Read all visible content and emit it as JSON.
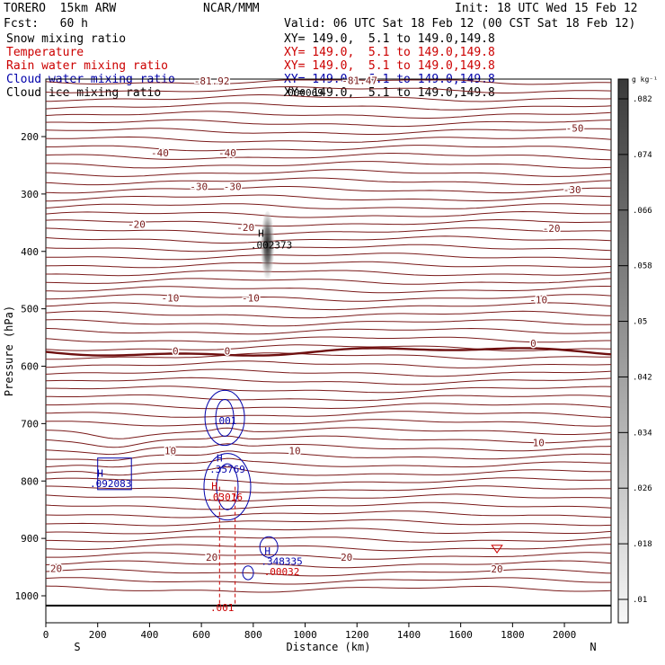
{
  "header": {
    "model": "TORERO  15km ARW",
    "center": "NCAR/MMM",
    "init": "Init: 18 UTC Wed 15 Feb 12",
    "fcst": "Fcst:   60 h",
    "valid": "Valid: 06 UTC Sat 18 Feb 12 (00 CST Sat 18 Feb 12)"
  },
  "legend": [
    {
      "label": "Snow mixing ratio",
      "xy": "XY= 149.0,  5.1 to 149.0,149.8",
      "color": "#000000",
      "xy_color": "#000000"
    },
    {
      "label": "Temperature",
      "xy": "XY= 149.0,  5.1 to 149.0,149.8",
      "color": "#cc0000",
      "xy_color": "#cc0000"
    },
    {
      "label": "Rain water mixing ratio",
      "xy": "XY= 149.0,  5.1 to 149.0,149.8",
      "color": "#cc0000",
      "xy_color": "#cc0000"
    },
    {
      "label": "Cloud water mixing ratio",
      "xy": "XY= 149.0,  5.1 to 149.0,149.8",
      "color": "#0000aa",
      "xy_color": "#0000aa"
    },
    {
      "label": "Cloud ice mixing ratio",
      "xy": "XY= 149.0,  5.1 to 149.0,149.8",
      "color": "#000000",
      "xy_color": "#000000"
    }
  ],
  "colors": {
    "temperature": "#7a1a1a",
    "freezing": "#6e0f0f",
    "cloud_water": "#0000aa",
    "rain": "#cc0000",
    "snow_dark": "#222222"
  },
  "chart_data": {
    "type": "cross-section",
    "xlabel": "Distance (km)",
    "ylabel": "Pressure (hPa)",
    "x_ticks": [
      0,
      200,
      400,
      600,
      800,
      1000,
      1200,
      1400,
      1600,
      1800,
      2000
    ],
    "y_ticks": [
      200,
      300,
      400,
      500,
      600,
      700,
      800,
      900,
      1000
    ],
    "xlim": [
      0,
      2180
    ],
    "ylim": [
      1050,
      100
    ],
    "end_labels": {
      "left": "S",
      "right": "N"
    },
    "colorbar": {
      "unit": "g kg⁻¹",
      "ticks": [
        ".01",
        ".018",
        ".026",
        ".034",
        ".042",
        ".05",
        ".058",
        ".066",
        ".074",
        ".082"
      ]
    },
    "temperature_labels": [
      {
        "text": "-81.92",
        "x": 640,
        "p": 103
      },
      {
        "text": "-81.47",
        "x": 1210,
        "p": 102
      },
      {
        "text": "-50",
        "x": 2040,
        "p": 185
      },
      {
        "text": "-40",
        "x": 440,
        "p": 228
      },
      {
        "text": "-40",
        "x": 700,
        "p": 228
      },
      {
        "text": "-30",
        "x": 590,
        "p": 287
      },
      {
        "text": "-30",
        "x": 720,
        "p": 287
      },
      {
        "text": "-30",
        "x": 2030,
        "p": 292
      },
      {
        "text": "-20",
        "x": 350,
        "p": 353
      },
      {
        "text": "-20",
        "x": 770,
        "p": 358
      },
      {
        "text": "-20",
        "x": 1950,
        "p": 360
      },
      {
        "text": "-10",
        "x": 480,
        "p": 481
      },
      {
        "text": "-10",
        "x": 790,
        "p": 481
      },
      {
        "text": "-10",
        "x": 1900,
        "p": 484
      },
      {
        "text": "0",
        "x": 500,
        "p": 573
      },
      {
        "text": "0",
        "x": 700,
        "p": 573
      },
      {
        "text": "0",
        "x": 1880,
        "p": 560
      },
      {
        "text": "10",
        "x": 480,
        "p": 747
      },
      {
        "text": "10",
        "x": 960,
        "p": 747
      },
      {
        "text": "10",
        "x": 1900,
        "p": 733
      },
      {
        "text": "20",
        "x": 40,
        "p": 952
      },
      {
        "text": "20",
        "x": 640,
        "p": 933
      },
      {
        "text": "20",
        "x": 1160,
        "p": 933
      },
      {
        "text": "20",
        "x": 1740,
        "p": 953
      }
    ],
    "annotations": [
      {
        "text": ".000069",
        "x": 990,
        "p": 123,
        "color": "#000000"
      },
      {
        "text": "H",
        "x": 830,
        "p": 368,
        "color": "#000000"
      },
      {
        "text": ".002373",
        "x": 870,
        "p": 389,
        "color": "#000000"
      },
      {
        "text": ".001",
        "x": 690,
        "p": 695,
        "color": "#0000aa"
      },
      {
        "text": "H",
        "x": 670,
        "p": 760,
        "color": "#0000aa"
      },
      {
        "text": ".35769",
        "x": 700,
        "p": 779,
        "color": "#0000aa"
      },
      {
        "text": "H",
        "x": 650,
        "p": 808,
        "color": "#cc0000"
      },
      {
        "text": ".03016",
        "x": 690,
        "p": 828,
        "color": "#cc0000"
      },
      {
        "text": "H",
        "x": 210,
        "p": 786,
        "color": "#0000aa"
      },
      {
        "text": ".092083",
        "x": 250,
        "p": 804,
        "color": "#0000aa"
      },
      {
        "text": "H",
        "x": 855,
        "p": 922,
        "color": "#0000aa"
      },
      {
        "text": ".348335",
        "x": 910,
        "p": 940,
        "color": "#0000aa"
      },
      {
        "text": ".00032",
        "x": 910,
        "p": 958,
        "color": "#cc0000"
      },
      {
        "text": ".001",
        "x": 680,
        "p": 1020,
        "color": "#cc0000"
      }
    ]
  }
}
